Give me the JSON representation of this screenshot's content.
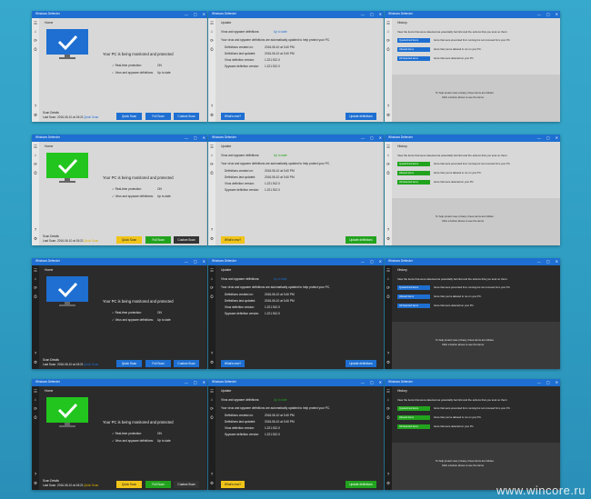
{
  "watermark": "www.wincore.ru",
  "titlebar": {
    "app_title": "Windows Defender",
    "min": "—",
    "max": "▢",
    "close": "✕"
  },
  "home": {
    "tab": "Home",
    "status": "Your PC is being monitored and protected",
    "checks": [
      {
        "label": "Real-time protection:",
        "value": "ON"
      },
      {
        "label": "Virus and spyware definitions:",
        "value": "Up to date"
      }
    ],
    "scan_details": "Scan Details",
    "last_scan": "Last Scan: 2016-06-10 at 18:21",
    "quick_scan": "Quick Scan",
    "full_scan": "Full Scan",
    "custom_scan": "Custom Scan",
    "link": "Quick Scan"
  },
  "update": {
    "tab": "Update",
    "virus_defs": "Virus and spyware definitions:",
    "virus_defs_value": "Up to date",
    "auto_note": "Your virus and spyware definitions are automatically updated to help protect your PC.",
    "rows": [
      {
        "label": "Definitions created on:",
        "value": "2016-06-10 at 3:40 PM"
      },
      {
        "label": "Definitions last updated:",
        "value": "2016-06-10 at 3:40 PM"
      },
      {
        "label": "Virus definition version:",
        "value": "1.221.912.0"
      },
      {
        "label": "Spyware definition version:",
        "value": "1.221.912.0"
      }
    ],
    "what_new": "What's new?",
    "update_button": "Update definitions"
  },
  "history": {
    "tab": "History",
    "intro": "View the items that were detected as potentially harmful and the actions that you took on them:",
    "items": [
      {
        "button": "Quarantined items",
        "desc": "Items that were prevented from running but not removed from your PC."
      },
      {
        "button": "Allowed items",
        "desc": "Items that you've allowed to run on your PC."
      },
      {
        "button": "All Detected items",
        "desc": "Items that were detected on your PC."
      }
    ],
    "privacy_1": "To help protect user privacy, these items are hidden.",
    "privacy_2": "Click a button above to see the items."
  }
}
